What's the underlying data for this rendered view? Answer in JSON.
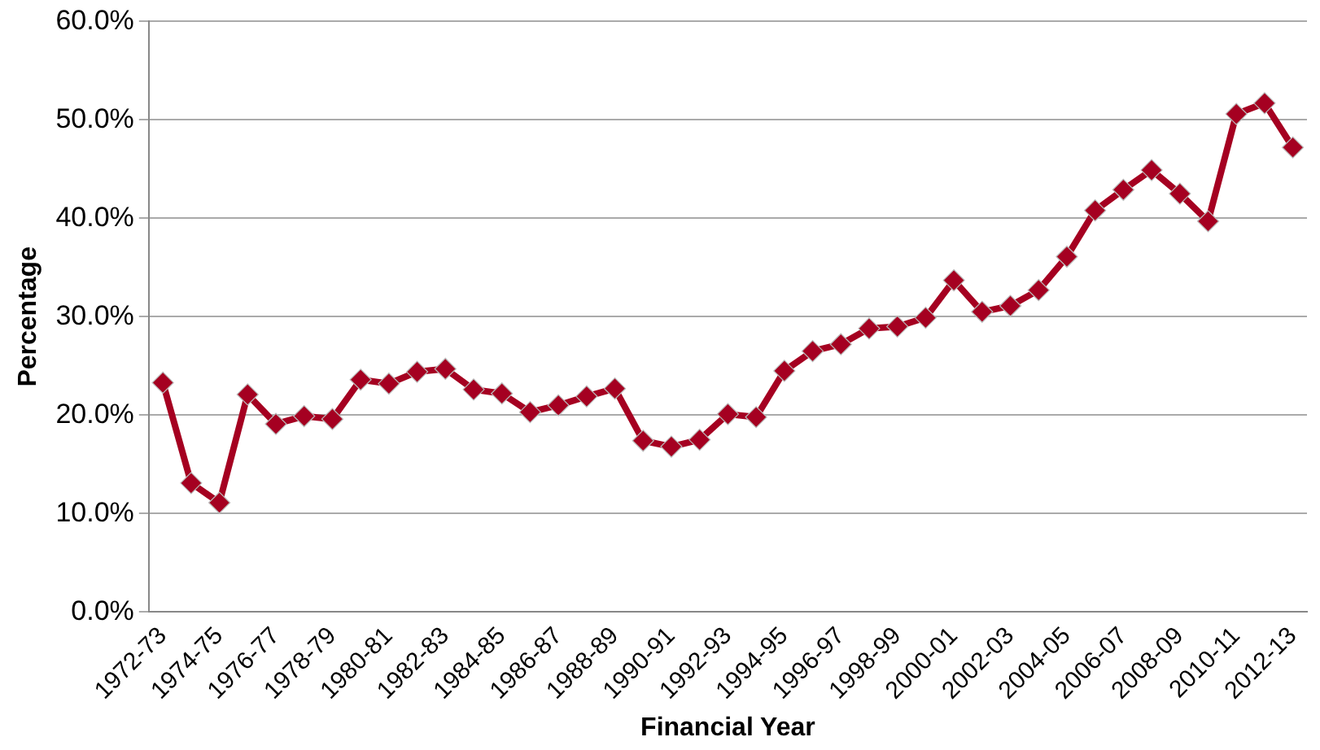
{
  "chart_data": {
    "type": "line",
    "xlabel": "Financial Year",
    "ylabel": "Percentage",
    "categories": [
      "1972-73",
      null,
      "1974-75",
      null,
      "1976-77",
      null,
      "1978-79",
      null,
      "1980-81",
      null,
      "1982-83",
      null,
      "1984-85",
      null,
      "1986-87",
      null,
      "1988-89",
      null,
      "1990-91",
      null,
      "1992-93",
      null,
      "1994-95",
      null,
      "1996-97",
      null,
      "1998-99",
      null,
      "2000-01",
      null,
      "2002-03",
      null,
      "2004-05",
      null,
      "2006-07",
      null,
      "2008-09",
      null,
      "2010-11",
      null,
      "2012-13"
    ],
    "series": [
      {
        "color": "#a50021",
        "values": [
          23.3,
          13.1,
          11.1,
          22.1,
          19.1,
          19.9,
          19.6,
          23.6,
          23.2,
          24.4,
          24.7,
          22.6,
          22.2,
          20.3,
          21.0,
          21.9,
          22.7,
          17.4,
          16.8,
          17.5,
          20.1,
          19.8,
          24.5,
          26.5,
          27.2,
          28.8,
          29.0,
          29.9,
          33.7,
          30.5,
          31.1,
          32.7,
          36.1,
          40.8,
          42.9,
          44.9,
          42.5,
          39.7,
          50.6,
          51.7,
          47.2
        ]
      }
    ],
    "ylim": [
      0,
      60
    ],
    "yticks": [
      {
        "value": 0,
        "label": "0.0%"
      },
      {
        "value": 10,
        "label": "10.0%"
      },
      {
        "value": 20,
        "label": "20.0%"
      },
      {
        "value": 30,
        "label": "30.0%"
      },
      {
        "value": 40,
        "label": "40.0%"
      },
      {
        "value": 50,
        "label": "50.0%"
      },
      {
        "value": 60,
        "label": "60.0%"
      }
    ],
    "grid": "y",
    "legend": false,
    "marker": "diamond",
    "line_style": "solid"
  }
}
